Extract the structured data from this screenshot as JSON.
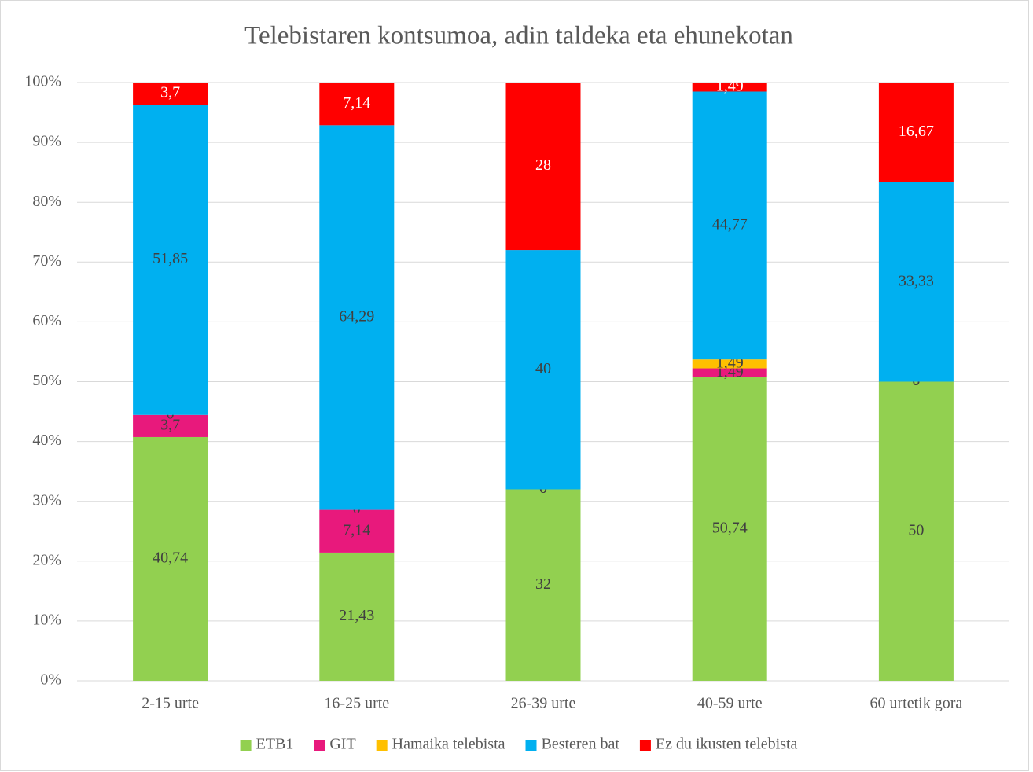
{
  "chart_data": {
    "type": "stacked_bar",
    "title": "Telebistaren kontsumoa, adin taldeka eta ehunekotan",
    "categories": [
      "2-15 urte",
      "16-25 urte",
      "26-39 urte",
      "40-59 urte",
      "60 urtetik gora"
    ],
    "series": [
      {
        "name": "ETB1",
        "color": "#92d050",
        "values": [
          40.74,
          21.43,
          32,
          50.74,
          50
        ],
        "value_labels": [
          "40,74",
          "21,43",
          "32",
          "50,74",
          "50"
        ]
      },
      {
        "name": "GIT",
        "color": "#e8197c",
        "values": [
          3.7,
          7.14,
          0,
          1.49,
          0
        ],
        "value_labels": [
          "3,7",
          "7,14",
          "0",
          "1,49",
          "0"
        ]
      },
      {
        "name": "Hamaika telebista",
        "color": "#ffc000",
        "values": [
          0,
          0,
          0,
          1.49,
          0
        ],
        "value_labels": [
          "0",
          "0",
          "0",
          "1,49",
          "0"
        ]
      },
      {
        "name": "Besteren bat",
        "color": "#00b0f0",
        "values": [
          51.85,
          64.29,
          40,
          44.77,
          33.33
        ],
        "value_labels": [
          "51,85",
          "64,29",
          "40",
          "44,77",
          "33,33"
        ]
      },
      {
        "name": "Ez du ikusten telebista",
        "color": "#ff0000",
        "values": [
          3.7,
          7.14,
          28,
          1.49,
          16.67
        ],
        "value_labels": [
          "3,7",
          "7,14",
          "28",
          "1,49",
          "16,67"
        ]
      }
    ],
    "ylim": [
      0,
      100
    ],
    "yticks": [
      {
        "value": 0,
        "label": "0%"
      },
      {
        "value": 10,
        "label": "10%"
      },
      {
        "value": 20,
        "label": "20%"
      },
      {
        "value": 30,
        "label": "30%"
      },
      {
        "value": 40,
        "label": "40%"
      },
      {
        "value": 50,
        "label": "50%"
      },
      {
        "value": 60,
        "label": "60%"
      },
      {
        "value": 70,
        "label": "70%"
      },
      {
        "value": 80,
        "label": "80%"
      },
      {
        "value": 90,
        "label": "90%"
      },
      {
        "value": 100,
        "label": "100%"
      }
    ],
    "grid": true,
    "legend": "bottom"
  }
}
